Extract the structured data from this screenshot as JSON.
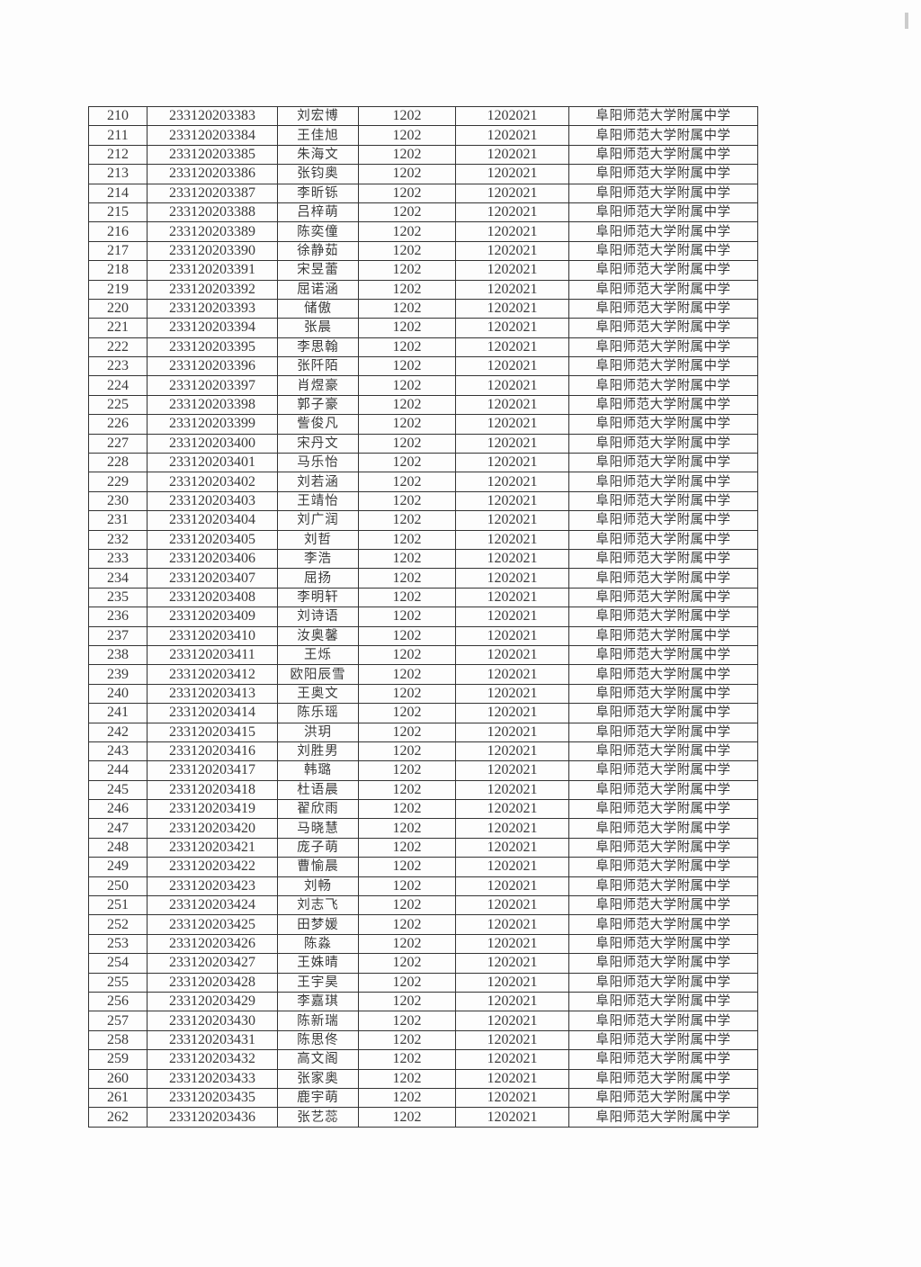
{
  "table": {
    "code": "1202",
    "sub_code": "1202021",
    "school": "阜阳师范大学附属中学",
    "rows": [
      [
        "210",
        "233120203383",
        "刘宏博"
      ],
      [
        "211",
        "233120203384",
        "王佳旭"
      ],
      [
        "212",
        "233120203385",
        "朱海文"
      ],
      [
        "213",
        "233120203386",
        "张钧奥"
      ],
      [
        "214",
        "233120203387",
        "李昕铄"
      ],
      [
        "215",
        "233120203388",
        "吕梓萌"
      ],
      [
        "216",
        "233120203389",
        "陈奕僮"
      ],
      [
        "217",
        "233120203390",
        "徐静茹"
      ],
      [
        "218",
        "233120203391",
        "宋昱蕾"
      ],
      [
        "219",
        "233120203392",
        "屈诺涵"
      ],
      [
        "220",
        "233120203393",
        "储傲"
      ],
      [
        "221",
        "233120203394",
        "张晨"
      ],
      [
        "222",
        "233120203395",
        "李思翰"
      ],
      [
        "223",
        "233120203396",
        "张阡陌"
      ],
      [
        "224",
        "233120203397",
        "肖煜豪"
      ],
      [
        "225",
        "233120203398",
        "郭子豪"
      ],
      [
        "226",
        "233120203399",
        "訾俊凡"
      ],
      [
        "227",
        "233120203400",
        "宋丹文"
      ],
      [
        "228",
        "233120203401",
        "马乐怡"
      ],
      [
        "229",
        "233120203402",
        "刘若涵"
      ],
      [
        "230",
        "233120203403",
        "王靖怡"
      ],
      [
        "231",
        "233120203404",
        "刘广润"
      ],
      [
        "232",
        "233120203405",
        "刘哲"
      ],
      [
        "233",
        "233120203406",
        "李浩"
      ],
      [
        "234",
        "233120203407",
        "屈扬"
      ],
      [
        "235",
        "233120203408",
        "李明轩"
      ],
      [
        "236",
        "233120203409",
        "刘诗语"
      ],
      [
        "237",
        "233120203410",
        "汝奥馨"
      ],
      [
        "238",
        "233120203411",
        "王烁"
      ],
      [
        "239",
        "233120203412",
        "欧阳辰雪"
      ],
      [
        "240",
        "233120203413",
        "王奥文"
      ],
      [
        "241",
        "233120203414",
        "陈乐瑶"
      ],
      [
        "242",
        "233120203415",
        "洪玥"
      ],
      [
        "243",
        "233120203416",
        "刘胜男"
      ],
      [
        "244",
        "233120203417",
        "韩璐"
      ],
      [
        "245",
        "233120203418",
        "杜语晨"
      ],
      [
        "246",
        "233120203419",
        "翟欣雨"
      ],
      [
        "247",
        "233120203420",
        "马晓慧"
      ],
      [
        "248",
        "233120203421",
        "庞子萌"
      ],
      [
        "249",
        "233120203422",
        "曹愉晨"
      ],
      [
        "250",
        "233120203423",
        "刘畅"
      ],
      [
        "251",
        "233120203424",
        "刘志飞"
      ],
      [
        "252",
        "233120203425",
        "田梦媛"
      ],
      [
        "253",
        "233120203426",
        "陈淼"
      ],
      [
        "254",
        "233120203427",
        "王姝晴"
      ],
      [
        "255",
        "233120203428",
        "王宇昊"
      ],
      [
        "256",
        "233120203429",
        "李嘉琪"
      ],
      [
        "257",
        "233120203430",
        "陈新瑞"
      ],
      [
        "258",
        "233120203431",
        "陈思佟"
      ],
      [
        "259",
        "233120203432",
        "高文阁"
      ],
      [
        "260",
        "233120203433",
        "张家奥"
      ],
      [
        "261",
        "233120203435",
        "鹿宇萌"
      ],
      [
        "262",
        "233120203436",
        "张艺蕊"
      ]
    ]
  }
}
